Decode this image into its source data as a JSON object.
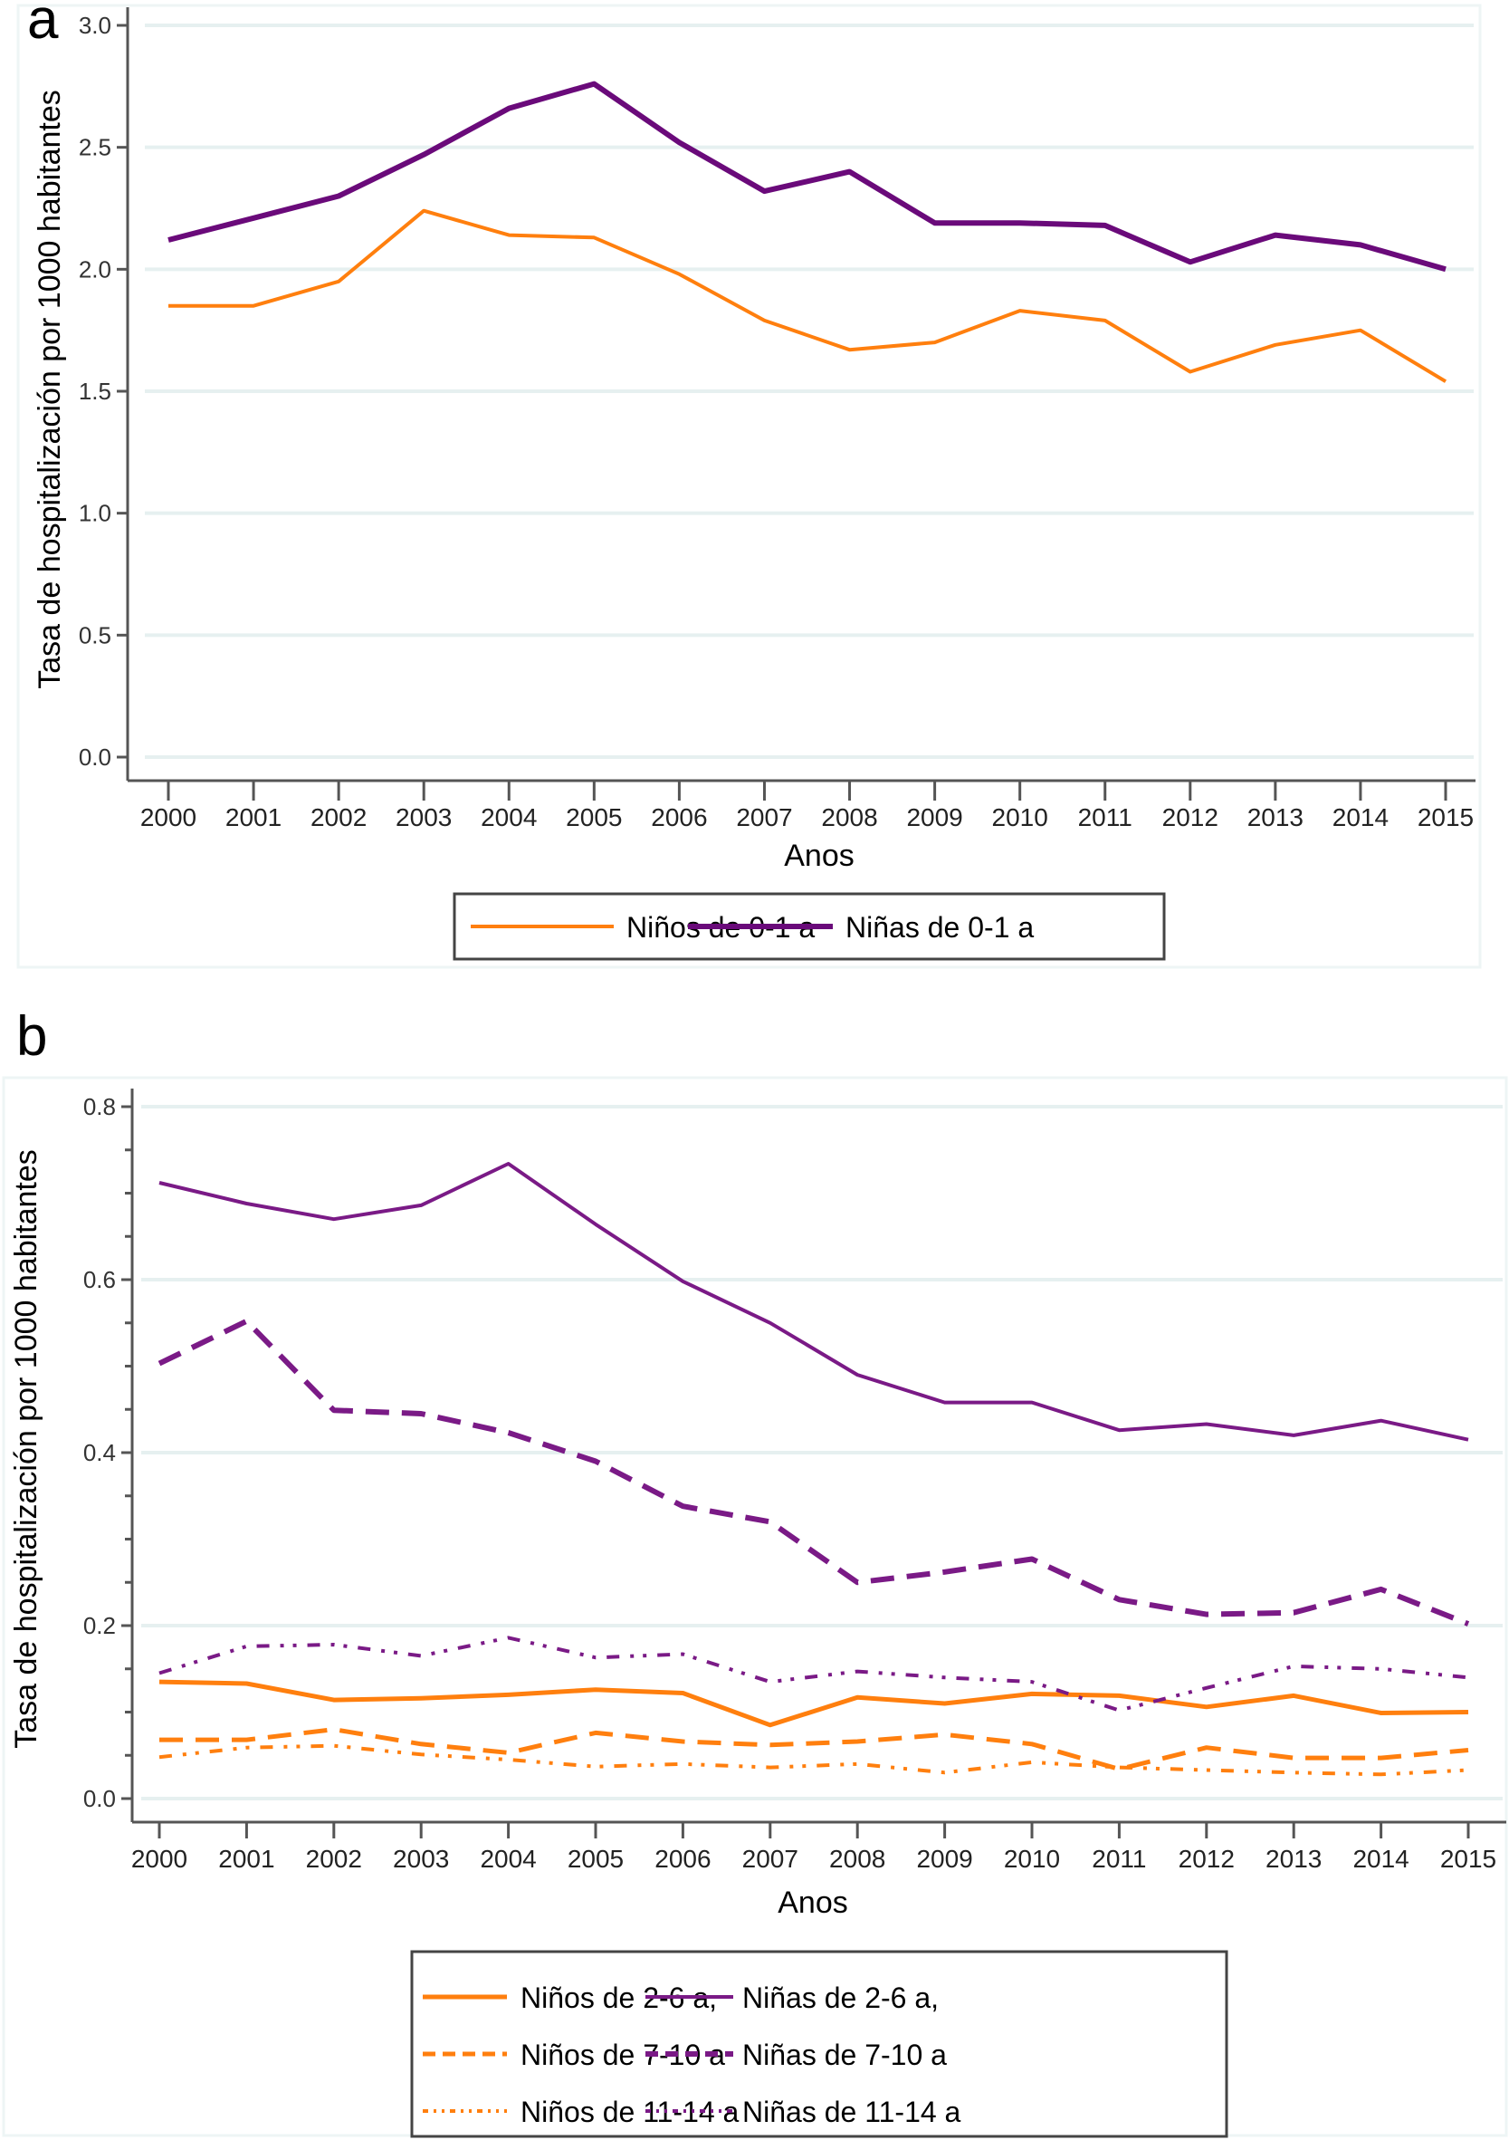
{
  "chart_data": [
    {
      "panel": "a",
      "type": "line",
      "title": "",
      "xlabel": "Anos",
      "ylabel": "Tasa de hospitalización por 1000 habitantes",
      "x": [
        2000,
        2001,
        2002,
        2003,
        2004,
        2005,
        2006,
        2007,
        2008,
        2009,
        2010,
        2011,
        2012,
        2013,
        2014,
        2015
      ],
      "xticks": [
        "2000",
        "2001",
        "2002",
        "2003",
        "2004",
        "2005",
        "2006",
        "2007",
        "2008",
        "2009",
        "2010",
        "2011",
        "2012",
        "2013",
        "2014",
        "2015"
      ],
      "ylim": [
        0,
        3.0
      ],
      "yticks": [
        0.0,
        0.5,
        1.0,
        1.5,
        2.0,
        2.5,
        3.0
      ],
      "ytick_labels": [
        "0.0",
        "0.5",
        "1.0",
        "1.5",
        "2.0",
        "2.5",
        "3.0"
      ],
      "grid": true,
      "legend_position": "bottom",
      "series": [
        {
          "name": "Niños de 0-1 a",
          "color": "#ff7f0e",
          "style": "solid",
          "width": "thin",
          "values": [
            1.85,
            1.85,
            1.95,
            2.24,
            2.14,
            2.13,
            1.98,
            1.79,
            1.67,
            1.7,
            1.83,
            1.79,
            1.58,
            1.69,
            1.75,
            1.54
          ]
        },
        {
          "name": "Niñas de 0-1 a",
          "color": "#6a0a7a",
          "style": "solid",
          "width": "thick",
          "values": [
            2.12,
            2.21,
            2.3,
            2.47,
            2.66,
            2.76,
            2.52,
            2.32,
            2.4,
            2.19,
            2.19,
            2.18,
            2.03,
            2.14,
            2.1,
            2.0
          ]
        }
      ]
    },
    {
      "panel": "b",
      "type": "line",
      "title": "",
      "xlabel": "Anos",
      "ylabel": "Tasa de hospitalización por 1000 habitantes",
      "x": [
        2000,
        2001,
        2002,
        2003,
        2004,
        2005,
        2006,
        2007,
        2008,
        2009,
        2010,
        2011,
        2012,
        2013,
        2014,
        2015
      ],
      "xticks": [
        "2000",
        "2001",
        "2002",
        "2003",
        "2004",
        "2005",
        "2006",
        "2007",
        "2008",
        "2009",
        "2010",
        "2011",
        "2012",
        "2013",
        "2014",
        "2015"
      ],
      "ylim": [
        0,
        0.8
      ],
      "yticks": [
        0.0,
        0.2,
        0.4,
        0.6,
        0.8
      ],
      "ytick_labels": [
        "0.0",
        "0.2",
        "0.4",
        "0.6",
        "0.8"
      ],
      "minor_yticks": [
        0.05,
        0.1,
        0.15,
        0.25,
        0.3,
        0.35,
        0.45,
        0.5,
        0.55,
        0.65,
        0.7,
        0.75
      ],
      "grid": true,
      "legend_position": "bottom",
      "series": [
        {
          "name": "Niños de 2-6 a,",
          "color": "#ff7f0e",
          "style": "solid",
          "values": [
            0.135,
            0.133,
            0.114,
            0.116,
            0.12,
            0.126,
            0.122,
            0.085,
            0.117,
            0.11,
            0.121,
            0.119,
            0.106,
            0.119,
            0.099,
            0.1
          ]
        },
        {
          "name": "Niñas de 2-6 a,",
          "color": "#7a1a86",
          "style": "solid",
          "values": [
            0.712,
            0.688,
            0.67,
            0.686,
            0.734,
            0.664,
            0.598,
            0.55,
            0.49,
            0.458,
            0.458,
            0.426,
            0.433,
            0.42,
            0.437,
            0.415
          ]
        },
        {
          "name": "Niños de 7-10 a",
          "color": "#ff7f0e",
          "style": "dash",
          "values": [
            0.068,
            0.068,
            0.08,
            0.063,
            0.053,
            0.076,
            0.066,
            0.062,
            0.066,
            0.074,
            0.063,
            0.034,
            0.059,
            0.047,
            0.047,
            0.056
          ]
        },
        {
          "name": "Niñas de 7-10 a",
          "color": "#7a1a86",
          "style": "dash",
          "values": [
            0.503,
            0.552,
            0.449,
            0.445,
            0.423,
            0.39,
            0.338,
            0.32,
            0.25,
            0.262,
            0.277,
            0.23,
            0.213,
            0.215,
            0.242,
            0.202
          ]
        },
        {
          "name": "Niños de 11-14 a",
          "color": "#ff7f0e",
          "style": "dash-dot-dot",
          "values": [
            0.048,
            0.059,
            0.061,
            0.051,
            0.045,
            0.037,
            0.04,
            0.036,
            0.04,
            0.03,
            0.042,
            0.036,
            0.033,
            0.03,
            0.028,
            0.033
          ]
        },
        {
          "name": "Niñas de 11-14 a",
          "color": "#7a1a86",
          "style": "dash-dot-dot",
          "values": [
            0.145,
            0.176,
            0.178,
            0.165,
            0.186,
            0.163,
            0.167,
            0.135,
            0.147,
            0.14,
            0.135,
            0.102,
            0.128,
            0.153,
            0.15,
            0.14
          ]
        }
      ]
    }
  ]
}
